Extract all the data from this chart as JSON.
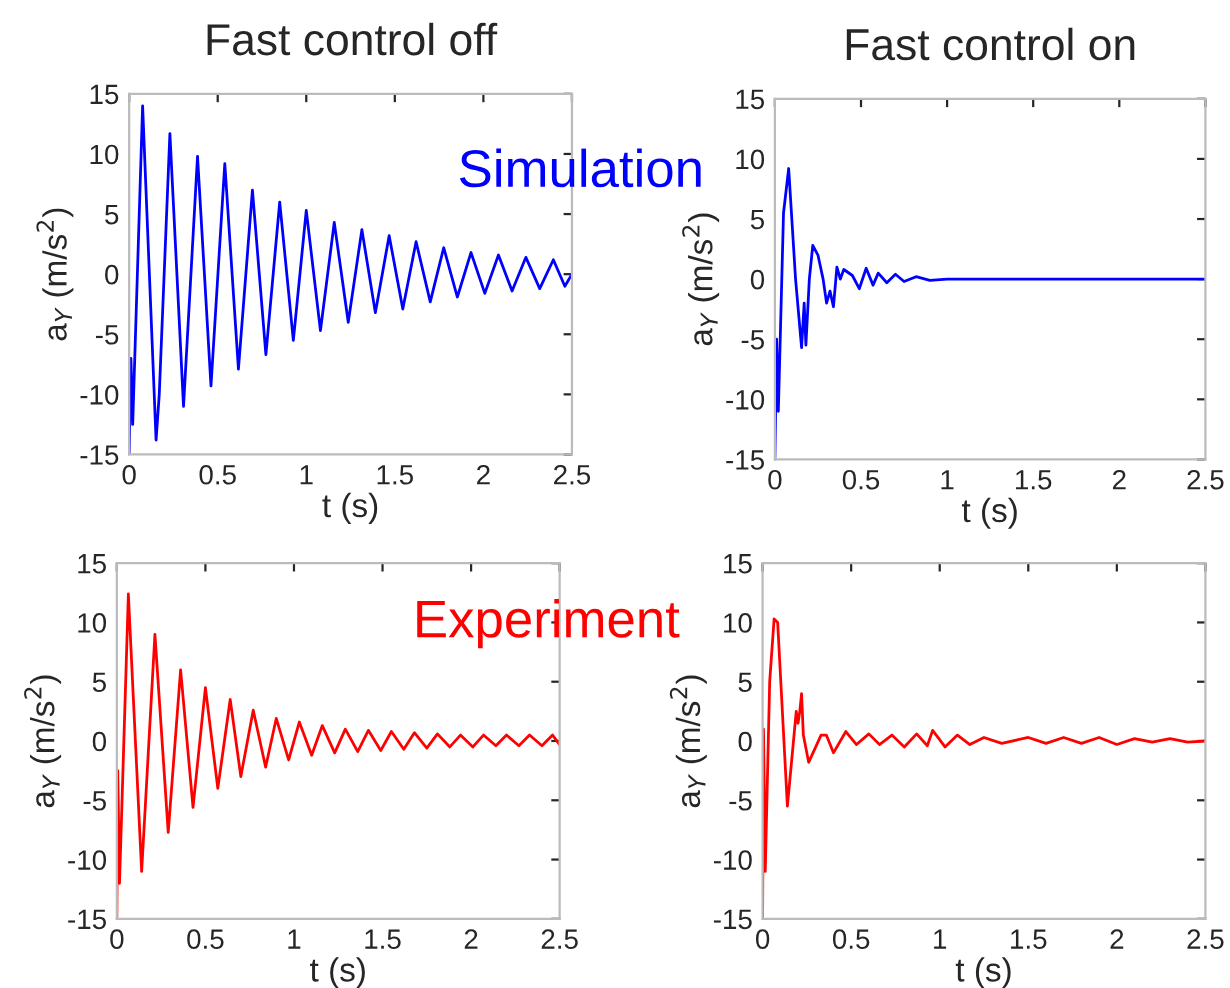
{
  "chart_data": [
    {
      "type": "line",
      "title": "Fast control off",
      "xlabel": "t (s)",
      "ylabel": "a$_{Y}$ (m/s$^{2}$)",
      "annotations": [
        "Simulation"
      ],
      "xlim": [
        0,
        2.5
      ],
      "ylim": [
        -15,
        15
      ],
      "xticks": [
        0,
        0.5,
        1,
        1.5,
        2,
        2.5
      ],
      "yticks": [
        -15,
        -10,
        -5,
        0,
        5,
        10,
        15
      ],
      "series": [
        {
          "color": "#0000ff",
          "x": [
            0,
            0.01,
            0.02,
            0.076,
            0.152,
            0.17,
            0.23,
            0.307,
            0.386,
            0.462,
            0.54,
            0.617,
            0.696,
            0.772,
            0.85,
            0.927,
            1.0,
            1.08,
            1.158,
            1.237,
            1.314,
            1.39,
            1.468,
            1.545,
            1.62,
            1.7,
            1.776,
            1.853,
            1.93,
            2.008,
            2.085,
            2.162,
            2.24,
            2.318,
            2.395,
            2.46,
            2.5
          ],
          "values": [
            -15,
            -7,
            -12.5,
            14,
            -13.8,
            -10,
            11.7,
            -11,
            9.8,
            -9.3,
            9.2,
            -7.9,
            7,
            -6.7,
            6,
            -5.5,
            5.3,
            -4.7,
            4.3,
            -4,
            3.7,
            -3.2,
            3.2,
            -2.9,
            2.7,
            -2.3,
            2.2,
            -1.9,
            1.8,
            -1.6,
            1.6,
            -1.4,
            1.4,
            -1.2,
            1.2,
            -1.0,
            0
          ]
        }
      ]
    },
    {
      "type": "line",
      "title": "Fast control on",
      "xlabel": "t (s)",
      "ylabel": "a$_{Y}$ (m/s$^{2}$)",
      "xlim": [
        0,
        2.5
      ],
      "ylim": [
        -15,
        15
      ],
      "xticks": [
        0,
        0.5,
        1,
        1.5,
        2,
        2.5
      ],
      "yticks": [
        -15,
        -10,
        -5,
        0,
        5,
        10,
        15
      ],
      "series": [
        {
          "color": "#0000ff",
          "x": [
            0,
            0.01,
            0.02,
            0.05,
            0.08,
            0.12,
            0.155,
            0.17,
            0.18,
            0.2,
            0.22,
            0.25,
            0.28,
            0.3,
            0.32,
            0.34,
            0.36,
            0.38,
            0.4,
            0.45,
            0.49,
            0.53,
            0.57,
            0.6,
            0.65,
            0.7,
            0.75,
            0.82,
            0.9,
            1.0,
            2.5
          ],
          "values": [
            -15,
            -5,
            -11,
            5.5,
            9.2,
            0,
            -5.7,
            -2,
            -5.5,
            0,
            2.8,
            2,
            0,
            -2,
            -1,
            -2.3,
            1,
            0,
            0.8,
            0.3,
            -0.8,
            0.9,
            -0.5,
            0.5,
            -0.3,
            0.4,
            -0.2,
            0.2,
            -0.1,
            0,
            0
          ]
        }
      ]
    },
    {
      "type": "line",
      "xlabel": "t (s)",
      "ylabel": "a$_{Y}$ (m/s$^{2}$)",
      "annotations": [
        "Experiment"
      ],
      "xlim": [
        0,
        2.5
      ],
      "ylim": [
        -15,
        15
      ],
      "xticks": [
        0,
        0.5,
        1,
        1.5,
        2,
        2.5
      ],
      "yticks": [
        -15,
        -10,
        -5,
        0,
        5,
        10,
        15
      ],
      "series": [
        {
          "color": "#ff0000",
          "x": [
            0,
            0.005,
            0.015,
            0.065,
            0.14,
            0.215,
            0.29,
            0.36,
            0.43,
            0.5,
            0.57,
            0.64,
            0.7,
            0.77,
            0.84,
            0.9,
            0.97,
            1.03,
            1.1,
            1.16,
            1.23,
            1.29,
            1.36,
            1.42,
            1.49,
            1.55,
            1.62,
            1.68,
            1.75,
            1.81,
            1.88,
            1.94,
            2.01,
            2.07,
            2.14,
            2.2,
            2.27,
            2.33,
            2.4,
            2.46,
            2.5
          ],
          "values": [
            -15,
            -2.5,
            -12,
            12.4,
            -11,
            9,
            -7.7,
            6,
            -5.6,
            4.5,
            -4,
            3.5,
            -3,
            2.6,
            -2.2,
            1.9,
            -1.6,
            1.6,
            -1.2,
            1.3,
            -1,
            1,
            -0.9,
            0.9,
            -0.8,
            0.8,
            -0.7,
            0.7,
            -0.6,
            0.6,
            -0.5,
            0.5,
            -0.5,
            0.5,
            -0.4,
            0.5,
            -0.4,
            0.5,
            -0.4,
            0.5,
            -0.3
          ]
        }
      ]
    },
    {
      "type": "line",
      "xlabel": "t (s)",
      "ylabel": "a$_{Y}$ (m/s$^{2}$)",
      "xlim": [
        0,
        2.5
      ],
      "ylim": [
        -15,
        15
      ],
      "xticks": [
        0,
        0.5,
        1,
        1.5,
        2,
        2.5
      ],
      "yticks": [
        -15,
        -10,
        -5,
        0,
        5,
        10,
        15
      ],
      "series": [
        {
          "color": "#ff0000",
          "x": [
            0,
            0.005,
            0.015,
            0.04,
            0.065,
            0.085,
            0.14,
            0.19,
            0.2,
            0.21,
            0.22,
            0.23,
            0.26,
            0.3,
            0.33,
            0.36,
            0.4,
            0.47,
            0.53,
            0.6,
            0.66,
            0.73,
            0.8,
            0.87,
            0.93,
            0.96,
            1.03,
            1.1,
            1.17,
            1.25,
            1.35,
            1.5,
            1.6,
            1.7,
            1.8,
            1.9,
            2.0,
            2.1,
            2.2,
            2.3,
            2.4,
            2.5
          ],
          "values": [
            -15,
            1,
            -11,
            5,
            10.3,
            10,
            -5.5,
            2.5,
            1.5,
            2.5,
            4,
            0.5,
            -1.8,
            -0.5,
            0.5,
            0.5,
            -1,
            0.8,
            -0.3,
            0.6,
            -0.3,
            0.5,
            -0.5,
            0.6,
            -0.4,
            0.9,
            -0.5,
            0.5,
            -0.3,
            0.3,
            -0.2,
            0.3,
            -0.2,
            0.3,
            -0.2,
            0.3,
            -0.3,
            0.2,
            -0.1,
            0.2,
            -0.1,
            0
          ]
        }
      ]
    }
  ]
}
